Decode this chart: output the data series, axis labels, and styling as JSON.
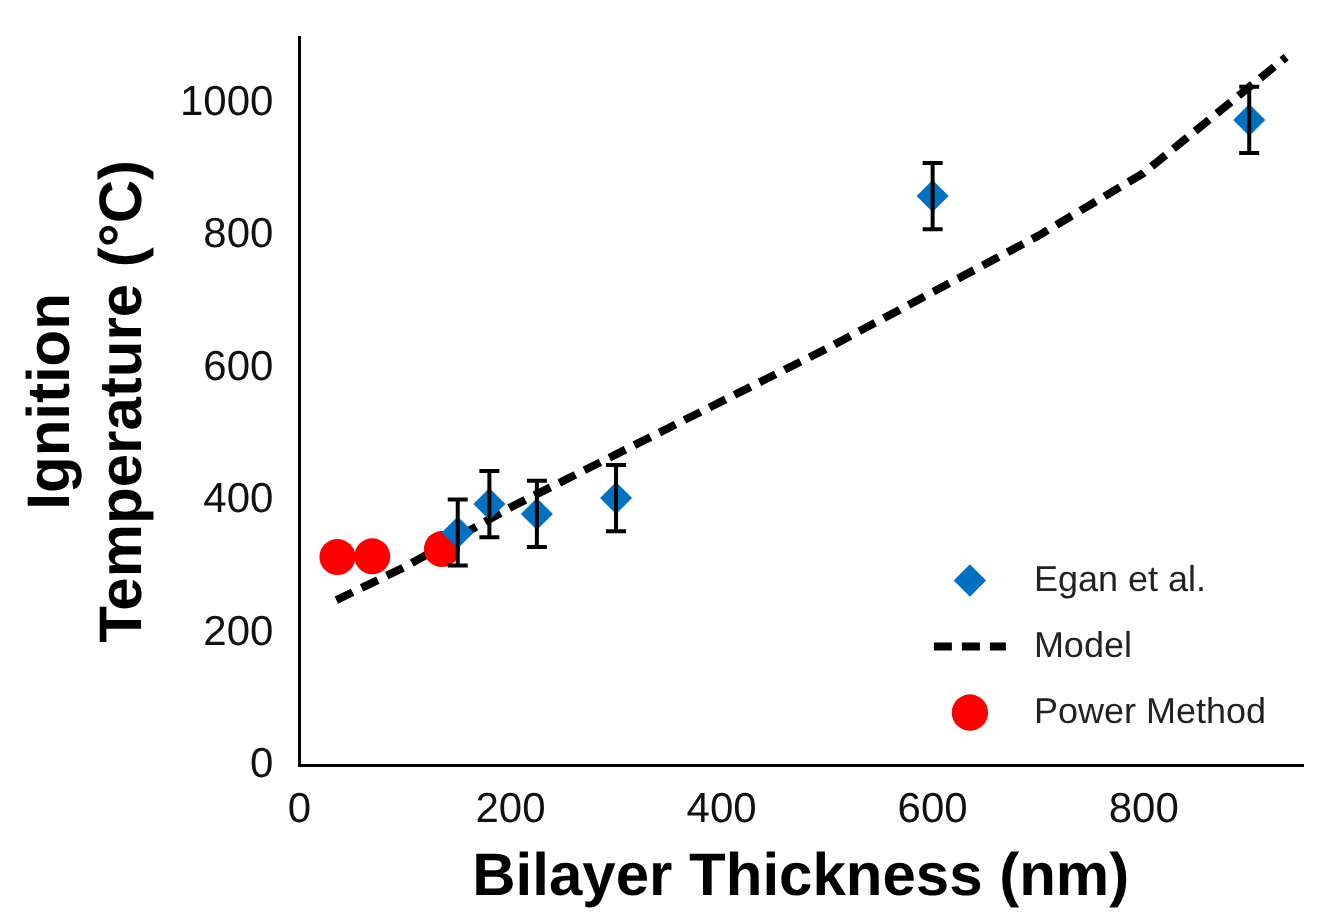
{
  "chart_data": {
    "type": "scatter",
    "xlabel": "Bilayer Thickness (nm)",
    "ylabel": "Ignition Temperature (°C)",
    "xlim": [
      0,
      950
    ],
    "xticks": [
      0,
      200,
      400,
      600,
      800
    ],
    "ylim": [
      0,
      1100
    ],
    "yticks": [
      0,
      200,
      400,
      600,
      800,
      1000
    ],
    "grid": false,
    "legend": "bottom right",
    "series": [
      {
        "name": "Egan et al.",
        "marker": "diamond",
        "color": "#0070c0",
        "x": [
          150,
          180,
          225,
          300,
          600,
          900
        ],
        "values": [
          352,
          395,
          380,
          404,
          860,
          975
        ],
        "errors": [
          50,
          50,
          50,
          50,
          50,
          50
        ]
      },
      {
        "name": "Model",
        "type": "line",
        "marker": "none",
        "line_style": "dashed",
        "color": "#000000",
        "x": [
          35,
          100,
          200,
          300,
          400,
          500,
          600,
          700,
          800,
          935
        ],
        "values": [
          250,
          300,
          390,
          470,
          550,
          630,
          715,
          800,
          895,
          1070
        ]
      },
      {
        "name": "Power Method",
        "marker": "circle",
        "color": "#ff0000",
        "x": [
          36,
          69,
          135
        ],
        "values": [
          315,
          316,
          327
        ]
      }
    ]
  }
}
